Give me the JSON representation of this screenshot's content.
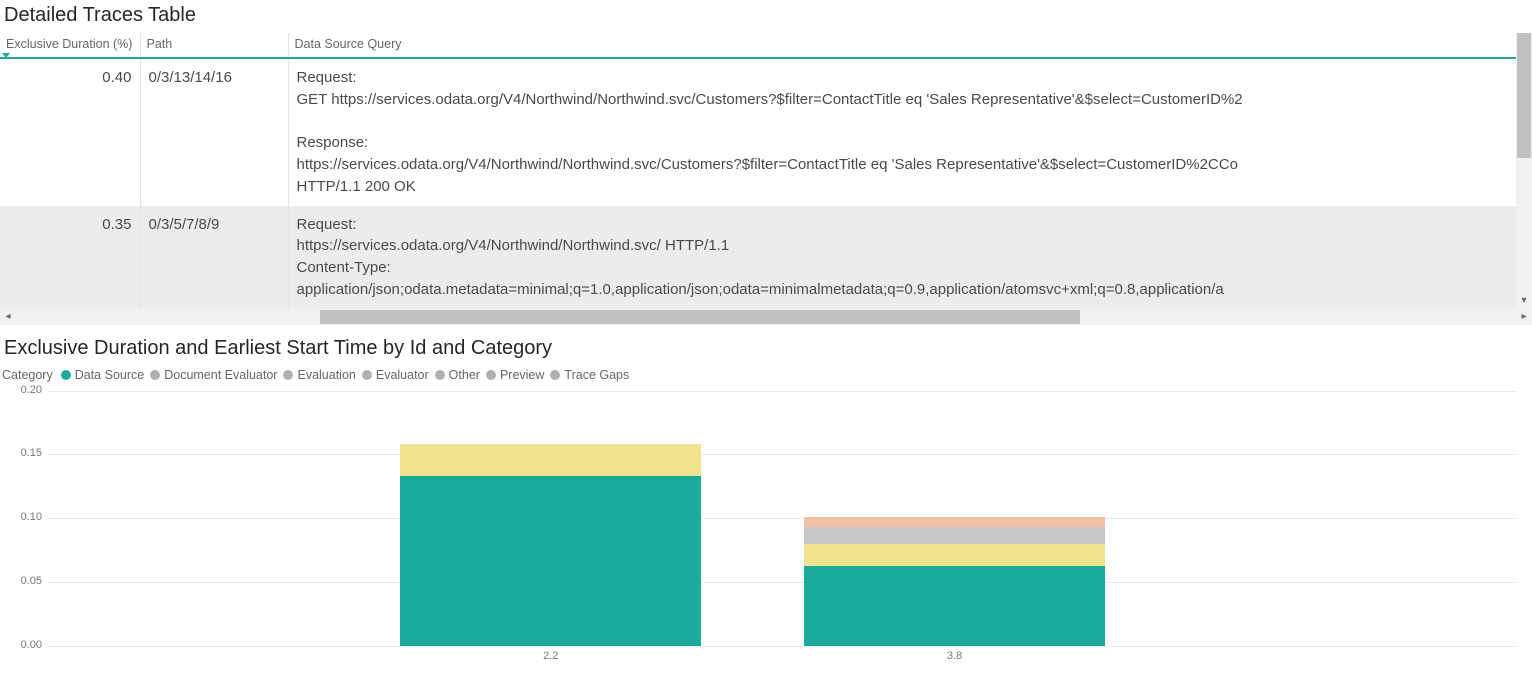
{
  "traces_table": {
    "title": "Detailed Traces Table",
    "columns": [
      {
        "key": "exclusive_duration_pct",
        "label": "Exclusive Duration (%)",
        "sort_indicator": true
      },
      {
        "key": "path",
        "label": "Path"
      },
      {
        "key": "data_source_query",
        "label": "Data Source Query"
      }
    ],
    "rows": [
      {
        "duration": "0.40",
        "path": "0/3/13/14/16",
        "query": "Request:\nGET https://services.odata.org/V4/Northwind/Northwind.svc/Customers?$filter=ContactTitle eq 'Sales Representative'&$select=CustomerID%2\n\nResponse:\nhttps://services.odata.org/V4/Northwind/Northwind.svc/Customers?$filter=ContactTitle eq 'Sales Representative'&$select=CustomerID%2CCo\nHTTP/1.1 200 OK"
      },
      {
        "duration": "0.35",
        "path": "0/3/5/7/8/9",
        "query": "Request:\nhttps://services.odata.org/V4/Northwind/Northwind.svc/ HTTP/1.1\nContent-Type:\napplication/json;odata.metadata=minimal;q=1.0,application/json;odata=minimalmetadata;q=0.9,application/atomsvc+xml;q=0.8,application/a"
      }
    ],
    "header_border_color": "#1aab9b",
    "row_alt_bg": "#ececec",
    "cell_border_color": "#e5e5e5",
    "font_size_header": 12.5,
    "font_size_cell": 15,
    "text_color_header": "#666666",
    "text_color_cell": "#4a4a4a"
  },
  "chart": {
    "title": "Exclusive Duration and Earliest Start Time by Id and Category",
    "type": "stacked-bar",
    "legend_label": "Category",
    "categories": [
      {
        "name": "Data Source",
        "color": "#1aab9b"
      },
      {
        "name": "Document Evaluator",
        "color": "#b0b0b0"
      },
      {
        "name": "Evaluation",
        "color": "#b0b0b0"
      },
      {
        "name": "Evaluator",
        "color": "#b0b0b0"
      },
      {
        "name": "Other",
        "color": "#b0b0b0"
      },
      {
        "name": "Preview",
        "color": "#b0b0b0"
      },
      {
        "name": "Trace Gaps",
        "color": "#b0b0b0"
      }
    ],
    "segment_colors": {
      "data_source": "#1aab9b",
      "yellow": "#f2e38f",
      "gray": "#c7c7c7",
      "peach": "#f3c2a4"
    },
    "ylim": [
      0,
      0.2
    ],
    "ytick_step": 0.05,
    "yticks": [
      0.0,
      0.05,
      0.1,
      0.15,
      0.2
    ],
    "grid_color": "#eaeaea",
    "background_color": "#ffffff",
    "tick_font_size": 11,
    "tick_color": "#777777",
    "bars": [
      {
        "x_label": "2.2",
        "left_pct": 24.0,
        "width_pct": 20.5,
        "segments": [
          {
            "color_key": "data_source",
            "value": 0.133
          },
          {
            "color_key": "yellow",
            "value": 0.025
          }
        ]
      },
      {
        "x_label": "3.8",
        "left_pct": 51.5,
        "width_pct": 20.5,
        "segments": [
          {
            "color_key": "data_source",
            "value": 0.062
          },
          {
            "color_key": "yellow",
            "value": 0.018
          },
          {
            "color_key": "gray",
            "value": 0.013
          },
          {
            "color_key": "peach",
            "value": 0.008
          }
        ]
      }
    ]
  }
}
